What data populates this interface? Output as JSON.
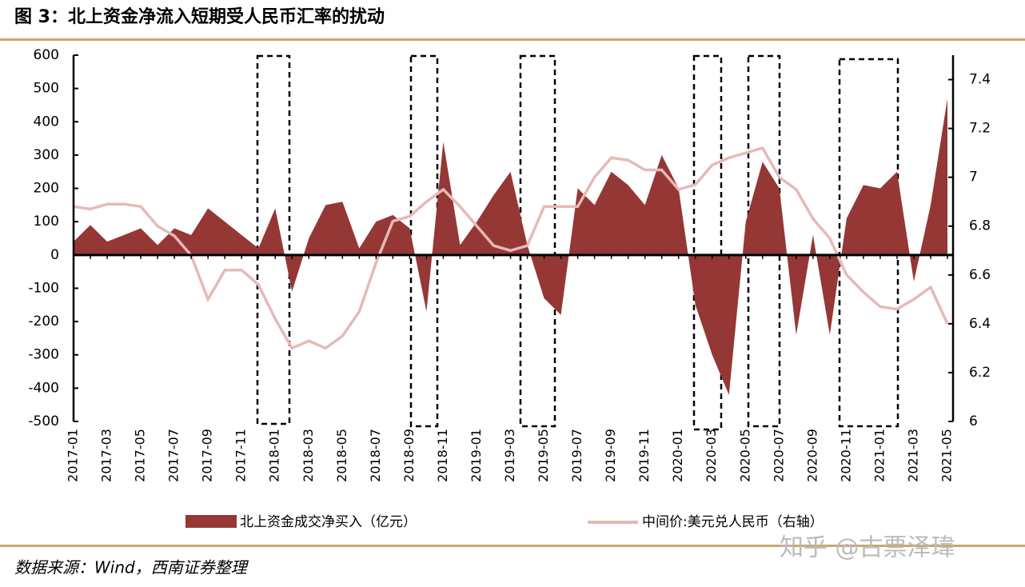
{
  "chart_data": {
    "type": "bar-area-line",
    "title": "图 3：北上资金净流入短期受人民币汇率的扰动",
    "source": "数据来源：Wind，西南证券整理",
    "watermark": "知乎 @古票泽瑋",
    "categories": [
      "2017-01",
      null,
      "2017-03",
      null,
      "2017-05",
      null,
      "2017-07",
      null,
      "2017-09",
      null,
      "2017-11",
      null,
      "2018-01",
      null,
      "2018-03",
      null,
      "2018-05",
      null,
      "2018-07",
      null,
      "2018-09",
      null,
      "2018-11",
      null,
      "2019-01",
      null,
      "2019-03",
      null,
      "2019-05",
      null,
      "2019-07",
      null,
      "2019-09",
      null,
      "2019-11",
      null,
      "2020-01",
      null,
      "2020-03",
      null,
      "2020-05",
      null,
      "2020-07",
      null,
      "2020-09",
      null,
      "2020-11",
      null,
      "2021-01",
      null,
      "2021-03",
      null,
      "2021-05"
    ],
    "series": [
      {
        "name": "北上资金成交净买入（亿元）",
        "color": "#953735",
        "axis": "y",
        "values": [
          40,
          90,
          40,
          60,
          80,
          30,
          80,
          60,
          140,
          100,
          60,
          20,
          140,
          -110,
          50,
          150,
          160,
          20,
          100,
          120,
          80,
          -170,
          340,
          30,
          100,
          180,
          250,
          30,
          -130,
          -180,
          200,
          150,
          250,
          210,
          150,
          300,
          200,
          -150,
          -300,
          -420,
          100,
          280,
          200,
          -240,
          60,
          -240,
          110,
          210,
          200,
          250,
          -80,
          150,
          470
        ]
      },
      {
        "name": "中间价:美元兑人民币（右轴）",
        "color": "#e6b9b8",
        "axis": "y2",
        "values": [
          6.88,
          6.87,
          6.89,
          6.89,
          6.88,
          6.8,
          6.76,
          6.68,
          6.5,
          6.62,
          6.62,
          6.56,
          6.42,
          6.3,
          6.33,
          6.3,
          6.35,
          6.45,
          6.65,
          6.82,
          6.84,
          6.9,
          6.95,
          6.88,
          6.8,
          6.72,
          6.7,
          6.72,
          6.88,
          6.88,
          6.88,
          7.0,
          7.08,
          7.07,
          7.03,
          7.03,
          6.95,
          6.97,
          7.05,
          7.08,
          7.1,
          7.12,
          7.0,
          6.95,
          6.83,
          6.75,
          6.6,
          6.53,
          6.47,
          6.46,
          6.5,
          6.55,
          6.4
        ]
      }
    ],
    "ylim": [
      -500,
      600
    ],
    "yticks": [
      -500,
      -400,
      -300,
      -200,
      -100,
      0,
      100,
      200,
      300,
      400,
      500,
      600
    ],
    "y2lim": [
      6,
      7.5
    ],
    "y2ticks": [
      6,
      6.2,
      6.4,
      6.6,
      6.8,
      7,
      7.2,
      7.4
    ]
  }
}
